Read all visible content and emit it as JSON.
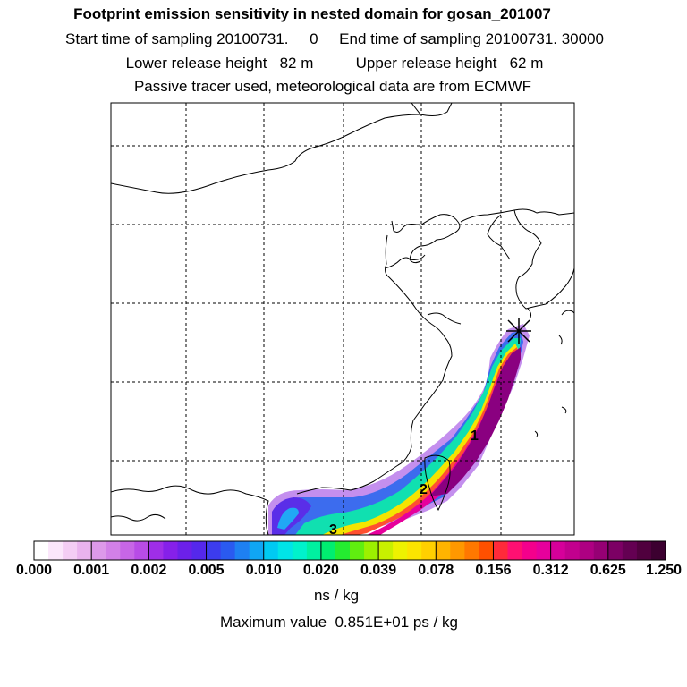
{
  "title": {
    "main": "Footprint emission sensitivity in nested domain for gosan_201007",
    "sampling": "Start time of sampling 20100731.     0     End time of sampling 20100731. 30000",
    "release": "Lower release height   82 m          Upper release height   62 m",
    "tracer": "Passive tracer used, meteorological data are from ECMWF"
  },
  "map": {
    "labels": [
      "1",
      "2",
      "3"
    ],
    "receptor": "Gosan (marker)"
  },
  "colorbar": {
    "tick_labels": [
      "0.000",
      "0.001",
      "0.002",
      "0.005",
      "0.010",
      "0.020",
      "0.039",
      "0.078",
      "0.156",
      "0.312",
      "0.625",
      "1.250"
    ],
    "colors": [
      "#ffffff",
      "#fbe6fb",
      "#f4cdf4",
      "#eab3ee",
      "#dd99ea",
      "#d280e8",
      "#c766e6",
      "#b84ce6",
      "#9f2ee8",
      "#8620ea",
      "#6c20ea",
      "#5528ec",
      "#3c3cee",
      "#2a5af0",
      "#1e80f2",
      "#10a6f4",
      "#00caf2",
      "#00e4e8",
      "#00f2cc",
      "#00f0a0",
      "#00ee70",
      "#24ec30",
      "#60ee10",
      "#9cf000",
      "#c8f000",
      "#eef200",
      "#fce400",
      "#ffd000",
      "#ffb400",
      "#ff9800",
      "#ff7800",
      "#ff5000",
      "#ff2a3a",
      "#ff1072",
      "#f4008c",
      "#e6009c",
      "#d6009a",
      "#c2008e",
      "#ae0082",
      "#960074",
      "#7c0064",
      "#640052",
      "#50003e",
      "#3c0030"
    ],
    "units": "ns / kg"
  },
  "max_value": "Maximum value  0.851E+01 ps / kg"
}
